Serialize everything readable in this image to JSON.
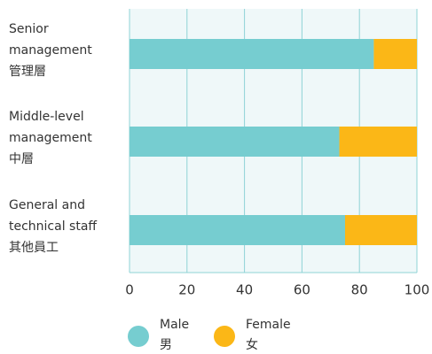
{
  "chart_data": {
    "type": "stacked-bar-horizontal",
    "categories": [
      [
        "Senior",
        "management",
        "管理層"
      ],
      [
        "Middle-level",
        "management",
        "中層"
      ],
      [
        "General and",
        "technical staff",
        "其他員工"
      ]
    ],
    "series": [
      {
        "name": [
          "Male",
          "男"
        ],
        "color": "#76cdd0",
        "values": [
          85,
          73,
          75
        ]
      },
      {
        "name": [
          "Female",
          "女"
        ],
        "color": "#fbb717",
        "values": [
          15,
          27,
          25
        ]
      }
    ],
    "xlim": [
      0,
      100
    ],
    "xticks": [
      0,
      20,
      40,
      60,
      80,
      100
    ],
    "grid": true
  }
}
